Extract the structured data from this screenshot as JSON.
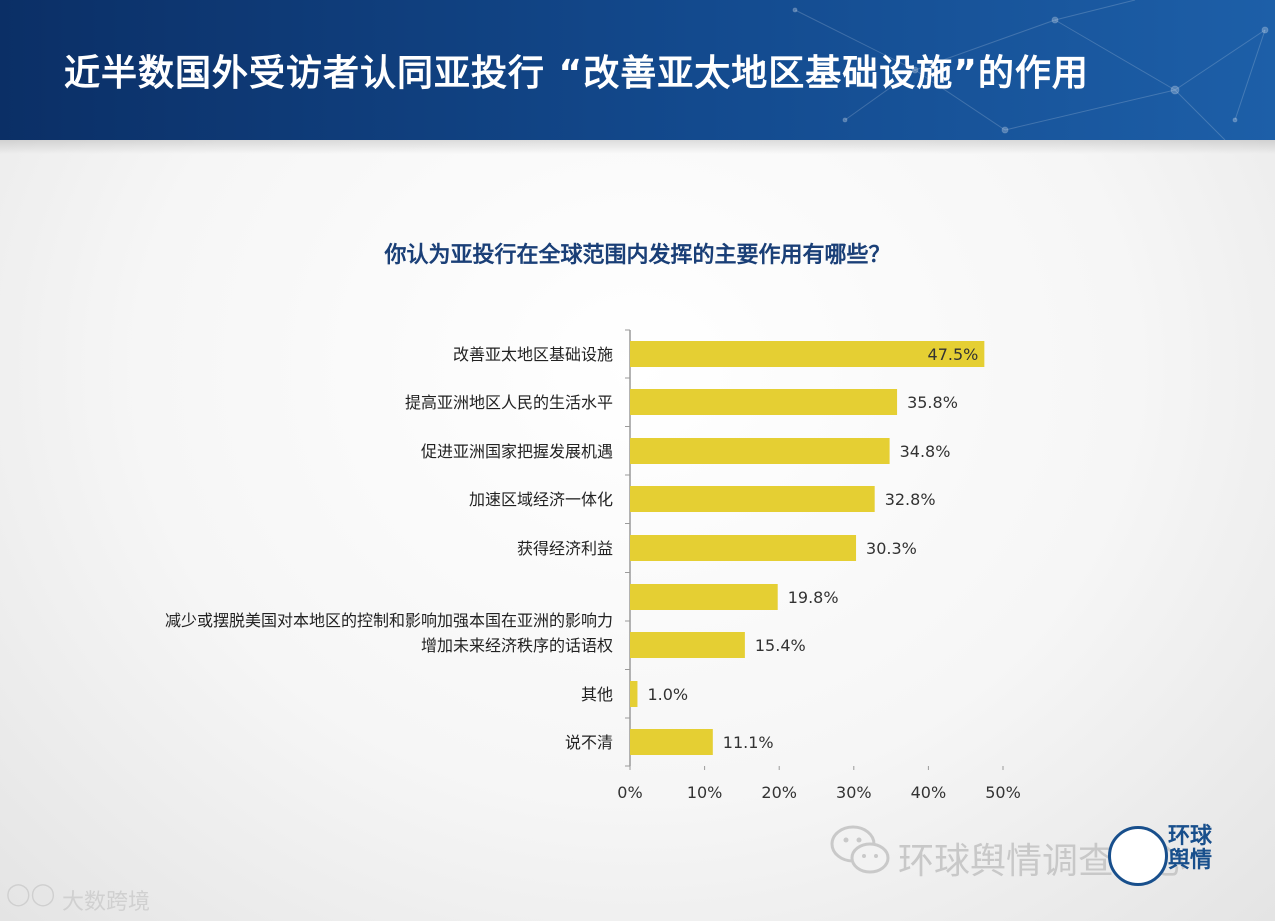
{
  "header": {
    "title": "近半数国外受访者认同亚投行 “改善亚太地区基础设施”的作用"
  },
  "chart_data": {
    "type": "bar",
    "orientation": "horizontal",
    "title": "你认为亚投行在全球范围内发挥的主要作用有哪些？",
    "categories": [
      "改善亚太地区基础设施",
      "提高亚洲地区人民的生活水平",
      "促进亚洲国家把握发展机遇",
      "加速区域经济一体化",
      "获得经济利益",
      "减少或摆脱美国对本地区的控制和影响加强本国在亚洲的影响力",
      "增加未来经济秩序的话语权",
      "其他",
      "说不清"
    ],
    "values": [
      47.5,
      35.8,
      34.8,
      32.8,
      30.3,
      19.8,
      15.4,
      1.0,
      11.1
    ],
    "value_labels": [
      "47.5%",
      "35.8%",
      "34.8%",
      "32.8%",
      "30.3%",
      "19.8%",
      "15.4%",
      "1.0%",
      "11.1%"
    ],
    "xlim": [
      0,
      50
    ],
    "xticks": [
      "0%",
      "10%",
      "20%",
      "30%",
      "40%",
      "50%"
    ],
    "xlabel": "",
    "ylabel": "",
    "grid": false,
    "bar_color": "#e5cf33",
    "title_color": "#1a3f77"
  },
  "watermark": {
    "right_text": "环球舆情调查中心",
    "seal_text": "环球舆情",
    "left_text": "大数跨境"
  }
}
